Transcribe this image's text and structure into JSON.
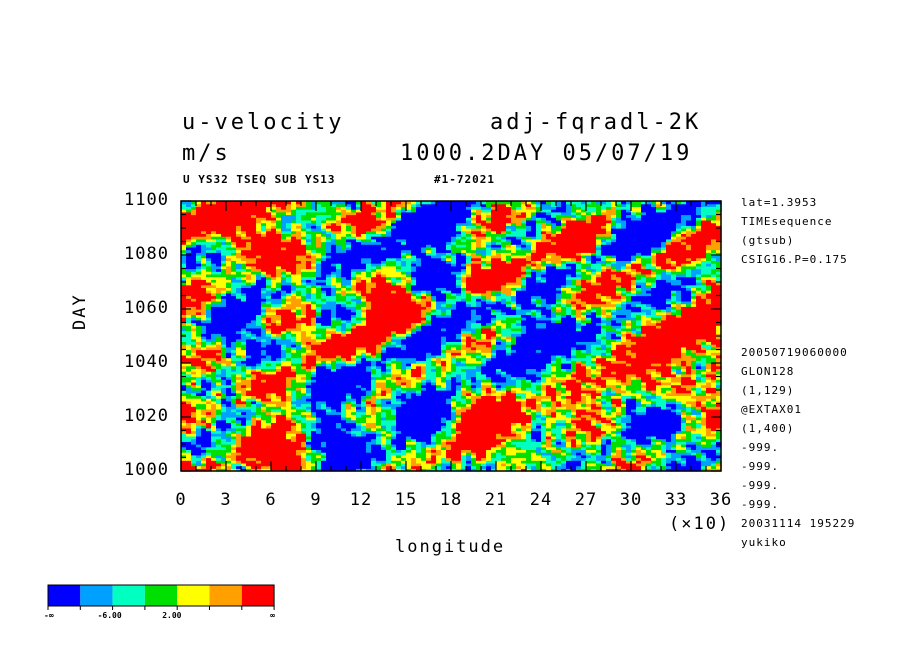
{
  "header": {
    "title_left": "u-velocity",
    "title_right": "adj-fqradl-2K",
    "units": "m/s",
    "time_info": "1000.2DAY 05/07/19",
    "subtitle_left": "U YS32 TSEQ SUB YS13",
    "subtitle_right": "#1-72021"
  },
  "side_notes": {
    "top": [
      "lat=1.3953",
      "TIMEsequence",
      "(gtsub)",
      "CSIG16.P=0.175"
    ],
    "bottom": [
      "20050719060000",
      "GLON128",
      "(1,129)",
      "@EXTAX01",
      "(1,400)",
      "-999.",
      "-999.",
      "-999.",
      "-999.",
      "20031114 195229",
      "yukiko"
    ]
  },
  "chart_data": {
    "type": "heatmap",
    "xlabel": "longitude",
    "ylabel": "DAY",
    "x_multiplier": "(×10)",
    "xlim": [
      0,
      36
    ],
    "ylim": [
      1000,
      1100
    ],
    "x_ticks": [
      "0",
      "3",
      "6",
      "9",
      "12",
      "15",
      "18",
      "21",
      "24",
      "27",
      "30",
      "33",
      "36"
    ],
    "y_ticks": [
      "1000",
      "1020",
      "1040",
      "1060",
      "1080",
      "1100"
    ],
    "colorbar": {
      "colors": [
        "#0000ff",
        "#00a0ff",
        "#00ffc0",
        "#00e000",
        "#ffff00",
        "#ffa000",
        "#ff0000"
      ],
      "labels": [
        "-∞",
        "-6.00",
        "2.00",
        "∞"
      ]
    }
  }
}
